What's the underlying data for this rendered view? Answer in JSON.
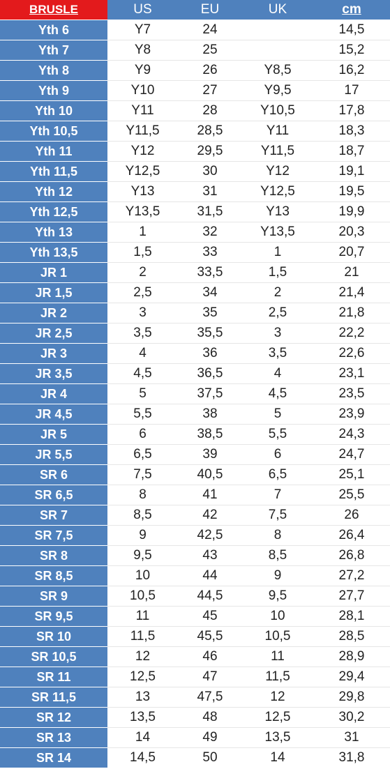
{
  "table": {
    "headers": {
      "brand": "BRUSLE",
      "us": "US",
      "eu": "EU",
      "uk": "UK",
      "cm": "cm"
    },
    "rows": [
      {
        "size": "Yth 6",
        "us": "Y7",
        "eu": "24",
        "uk": "",
        "cm": "14,5"
      },
      {
        "size": "Yth 7",
        "us": "Y8",
        "eu": "25",
        "uk": "",
        "cm": "15,2"
      },
      {
        "size": "Yth 8",
        "us": "Y9",
        "eu": "26",
        "uk": "Y8,5",
        "cm": "16,2"
      },
      {
        "size": "Yth 9",
        "us": "Y10",
        "eu": "27",
        "uk": "Y9,5",
        "cm": "17"
      },
      {
        "size": "Yth 10",
        "us": "Y11",
        "eu": "28",
        "uk": "Y10,5",
        "cm": "17,8"
      },
      {
        "size": "Yth 10,5",
        "us": "Y11,5",
        "eu": "28,5",
        "uk": "Y11",
        "cm": "18,3"
      },
      {
        "size": "Yth 11",
        "us": "Y12",
        "eu": "29,5",
        "uk": "Y11,5",
        "cm": "18,7"
      },
      {
        "size": "Yth 11,5",
        "us": "Y12,5",
        "eu": "30",
        "uk": "Y12",
        "cm": "19,1"
      },
      {
        "size": "Yth 12",
        "us": "Y13",
        "eu": "31",
        "uk": "Y12,5",
        "cm": "19,5"
      },
      {
        "size": "Yth 12,5",
        "us": "Y13,5",
        "eu": "31,5",
        "uk": "Y13",
        "cm": "19,9"
      },
      {
        "size": "Yth 13",
        "us": "1",
        "eu": "32",
        "uk": "Y13,5",
        "cm": "20,3"
      },
      {
        "size": "Yth 13,5",
        "us": "1,5",
        "eu": "33",
        "uk": "1",
        "cm": "20,7"
      },
      {
        "size": "JR 1",
        "us": "2",
        "eu": "33,5",
        "uk": "1,5",
        "cm": "21"
      },
      {
        "size": "JR 1,5",
        "us": "2,5",
        "eu": "34",
        "uk": "2",
        "cm": "21,4"
      },
      {
        "size": "JR 2",
        "us": "3",
        "eu": "35",
        "uk": "2,5",
        "cm": "21,8"
      },
      {
        "size": "JR 2,5",
        "us": "3,5",
        "eu": "35,5",
        "uk": "3",
        "cm": "22,2"
      },
      {
        "size": "JR 3",
        "us": "4",
        "eu": "36",
        "uk": "3,5",
        "cm": "22,6"
      },
      {
        "size": "JR 3,5",
        "us": "4,5",
        "eu": "36,5",
        "uk": "4",
        "cm": "23,1"
      },
      {
        "size": "JR 4",
        "us": "5",
        "eu": "37,5",
        "uk": "4,5",
        "cm": "23,5"
      },
      {
        "size": "JR 4,5",
        "us": "5,5",
        "eu": "38",
        "uk": "5",
        "cm": "23,9"
      },
      {
        "size": "JR 5",
        "us": "6",
        "eu": "38,5",
        "uk": "5,5",
        "cm": "24,3"
      },
      {
        "size": "JR 5,5",
        "us": "6,5",
        "eu": "39",
        "uk": "6",
        "cm": "24,7"
      },
      {
        "size": "SR 6",
        "us": "7,5",
        "eu": "40,5",
        "uk": "6,5",
        "cm": "25,1"
      },
      {
        "size": "SR 6,5",
        "us": "8",
        "eu": "41",
        "uk": "7",
        "cm": "25,5"
      },
      {
        "size": "SR 7",
        "us": "8,5",
        "eu": "42",
        "uk": "7,5",
        "cm": "26"
      },
      {
        "size": "SR 7,5",
        "us": "9",
        "eu": "42,5",
        "uk": "8",
        "cm": "26,4"
      },
      {
        "size": "SR 8",
        "us": "9,5",
        "eu": "43",
        "uk": "8,5",
        "cm": "26,8"
      },
      {
        "size": "SR 8,5",
        "us": "10",
        "eu": "44",
        "uk": "9",
        "cm": "27,2"
      },
      {
        "size": "SR 9",
        "us": "10,5",
        "eu": "44,5",
        "uk": "9,5",
        "cm": "27,7"
      },
      {
        "size": "SR 9,5",
        "us": "11",
        "eu": "45",
        "uk": "10",
        "cm": "28,1"
      },
      {
        "size": "SR 10",
        "us": "11,5",
        "eu": "45,5",
        "uk": "10,5",
        "cm": "28,5"
      },
      {
        "size": "SR 10,5",
        "us": "12",
        "eu": "46",
        "uk": "11",
        "cm": "28,9"
      },
      {
        "size": "SR 11",
        "us": "12,5",
        "eu": "47",
        "uk": "11,5",
        "cm": "29,4"
      },
      {
        "size": "SR 11,5",
        "us": "13",
        "eu": "47,5",
        "uk": "12",
        "cm": "29,8"
      },
      {
        "size": "SR 12",
        "us": "13,5",
        "eu": "48",
        "uk": "12,5",
        "cm": "30,2"
      },
      {
        "size": "SR 13",
        "us": "14",
        "eu": "49",
        "uk": "13,5",
        "cm": "31"
      },
      {
        "size": "SR 14",
        "us": "14,5",
        "eu": "50",
        "uk": "14",
        "cm": "31,8"
      }
    ]
  },
  "colors": {
    "header_blue": "#4f81bd",
    "brand_red": "#e31a1c",
    "text_dark": "#222222"
  }
}
